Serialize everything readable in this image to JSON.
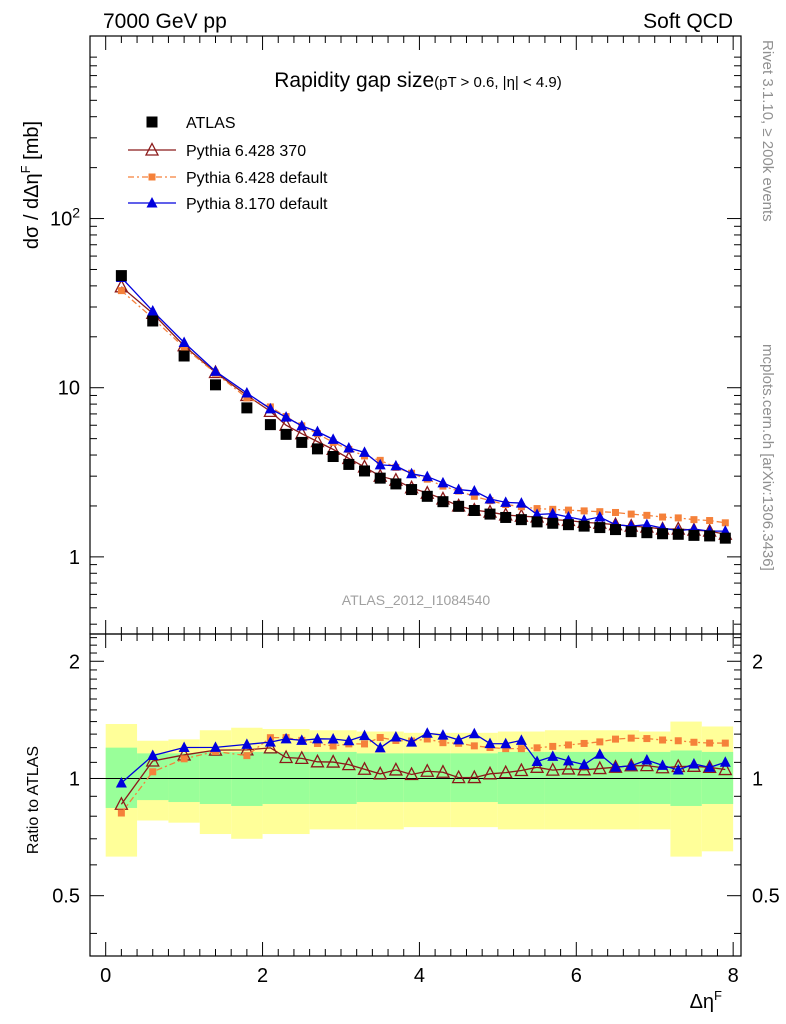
{
  "header": {
    "left": "7000 GeV pp",
    "right": "Soft QCD"
  },
  "side": {
    "top": "Rivet 3.1.10, ≥ 200k events",
    "bottom": "mcplots.cern.ch [arXiv:1306.3436]"
  },
  "chart_data": {
    "type": "line",
    "title": "Rapidity gap size",
    "subtitle": "(pT > 0.6, |η| < 4.9)",
    "watermark": "ATLAS_2012_I1084540",
    "xlabel": "ΔηF",
    "ylabel": "dσ / dΔηF [mb]",
    "ratio_ylabel": "Ratio to ATLAS",
    "xlim": [
      -0.2,
      8.1
    ],
    "main_ylim": [
      0.35,
      1200
    ],
    "main_yscale": "log",
    "ratio_ylim": [
      0.35,
      2.35
    ],
    "ratio_yscale": "log",
    "x_ticks": [
      "0",
      "2",
      "4",
      "6",
      "8"
    ],
    "main_y_ticks": [
      "1",
      "10",
      "10^2"
    ],
    "ratio_y_ticks": [
      "0.5",
      "1",
      "2"
    ],
    "legend_position": "top-left",
    "x": [
      0.2,
      0.6,
      1.0,
      1.4,
      1.8,
      2.1,
      2.3,
      2.5,
      2.7,
      2.9,
      3.1,
      3.3,
      3.5,
      3.7,
      3.9,
      4.1,
      4.3,
      4.5,
      4.7,
      4.9,
      5.1,
      5.3,
      5.5,
      5.7,
      5.9,
      6.1,
      6.3,
      6.5,
      6.7,
      6.9,
      7.1,
      7.3,
      7.5,
      7.7,
      7.9
    ],
    "series": [
      {
        "name": "ATLAS",
        "color": "#000000",
        "marker": "square",
        "values": [
          46,
          24.8,
          15.4,
          10.4,
          7.6,
          6.05,
          5.3,
          4.75,
          4.35,
          3.92,
          3.52,
          3.22,
          2.92,
          2.7,
          2.5,
          2.28,
          2.12,
          1.99,
          1.88,
          1.79,
          1.71,
          1.66,
          1.61,
          1.58,
          1.55,
          1.52,
          1.49,
          1.45,
          1.41,
          1.39,
          1.37,
          1.36,
          1.34,
          1.33,
          1.29
        ]
      },
      {
        "name": "Pythia 6.428 370",
        "color": "#8b1a1a",
        "marker": "open-triangle",
        "values": [
          39.5,
          27.5,
          17.7,
          12.3,
          9.0,
          7.25,
          6.0,
          5.35,
          4.8,
          4.32,
          3.82,
          3.4,
          3.0,
          2.84,
          2.56,
          2.38,
          2.2,
          2.0,
          1.89,
          1.84,
          1.77,
          1.74,
          1.72,
          1.66,
          1.64,
          1.6,
          1.58,
          1.55,
          1.52,
          1.5,
          1.46,
          1.46,
          1.44,
          1.42,
          1.36
        ]
      },
      {
        "name": "Pythia 6.428 default",
        "color": "#f5813a",
        "marker": "square",
        "values": [
          37.5,
          25.8,
          17.3,
          12.2,
          8.7,
          7.7,
          6.75,
          5.95,
          5.35,
          4.75,
          4.32,
          3.95,
          3.72,
          3.38,
          3.12,
          2.88,
          2.62,
          2.45,
          2.28,
          2.15,
          2.04,
          1.98,
          1.93,
          1.91,
          1.89,
          1.87,
          1.85,
          1.83,
          1.79,
          1.76,
          1.72,
          1.7,
          1.66,
          1.64,
          1.59
        ]
      },
      {
        "name": "Pythia 8.170 default",
        "color": "#0000dd",
        "marker": "triangle",
        "values": [
          44.8,
          28.4,
          18.5,
          12.5,
          9.3,
          7.5,
          6.7,
          5.95,
          5.5,
          4.95,
          4.4,
          4.15,
          3.5,
          3.45,
          3.1,
          2.98,
          2.74,
          2.5,
          2.45,
          2.2,
          2.1,
          2.08,
          1.78,
          1.8,
          1.72,
          1.65,
          1.72,
          1.55,
          1.52,
          1.55,
          1.48,
          1.43,
          1.46,
          1.42,
          1.42
        ]
      }
    ],
    "ratio_band_inner": [
      [
        0.0,
        0.4,
        0.84,
        1.2
      ],
      [
        0.4,
        0.8,
        0.88,
        1.16
      ],
      [
        0.8,
        1.2,
        0.87,
        1.16
      ],
      [
        1.2,
        1.6,
        0.86,
        1.17
      ],
      [
        1.6,
        2.0,
        0.85,
        1.17
      ],
      [
        2.0,
        2.6,
        0.86,
        1.17
      ],
      [
        2.6,
        3.2,
        0.86,
        1.17
      ],
      [
        3.2,
        3.8,
        0.87,
        1.16
      ],
      [
        3.8,
        4.4,
        0.87,
        1.16
      ],
      [
        4.4,
        5.0,
        0.87,
        1.16
      ],
      [
        5.0,
        5.6,
        0.86,
        1.17
      ],
      [
        5.6,
        6.2,
        0.86,
        1.17
      ],
      [
        6.2,
        6.8,
        0.86,
        1.17
      ],
      [
        6.8,
        7.2,
        0.86,
        1.17
      ],
      [
        7.2,
        7.6,
        0.85,
        1.18
      ],
      [
        7.6,
        8.0,
        0.86,
        1.17
      ]
    ],
    "ratio_band_outer": [
      [
        0.0,
        0.4,
        0.63,
        1.38
      ],
      [
        0.4,
        0.8,
        0.78,
        1.25
      ],
      [
        0.8,
        1.2,
        0.77,
        1.26
      ],
      [
        1.2,
        1.6,
        0.72,
        1.33
      ],
      [
        1.6,
        2.0,
        0.7,
        1.35
      ],
      [
        2.0,
        2.6,
        0.72,
        1.34
      ],
      [
        2.6,
        3.2,
        0.74,
        1.33
      ],
      [
        3.2,
        3.8,
        0.74,
        1.32
      ],
      [
        3.8,
        4.4,
        0.75,
        1.31
      ],
      [
        4.4,
        5.0,
        0.75,
        1.31
      ],
      [
        5.0,
        5.6,
        0.74,
        1.32
      ],
      [
        5.6,
        6.2,
        0.74,
        1.33
      ],
      [
        6.2,
        6.8,
        0.74,
        1.33
      ],
      [
        6.8,
        7.2,
        0.74,
        1.32
      ],
      [
        7.2,
        7.6,
        0.63,
        1.4
      ],
      [
        7.6,
        8.0,
        0.65,
        1.36
      ]
    ]
  }
}
